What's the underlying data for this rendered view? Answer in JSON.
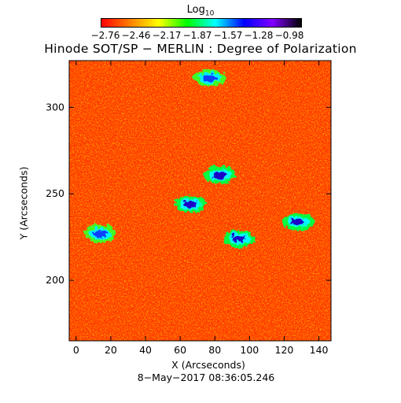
{
  "colorbar": {
    "title_base": "Log",
    "title_sub": "10",
    "ticks": [
      "−2.76",
      "−2.46",
      "−2.17",
      "−1.87",
      "−1.57",
      "−1.28",
      "−0.98"
    ],
    "colormap": [
      "#ff0000",
      "#ff7f00",
      "#ffff00",
      "#00ff00",
      "#00ffff",
      "#0000ff",
      "#8000ff",
      "#000000"
    ]
  },
  "chart_data": {
    "type": "heatmap",
    "title": "Hinode SOT/SP − MERLIN : Degree of Polarization",
    "xlabel": "X (Arcseconds)",
    "ylabel": "Y (Arcseconds)",
    "xlim": [
      -4,
      147
    ],
    "ylim": [
      165,
      327
    ],
    "xticks": [
      0,
      20,
      40,
      60,
      80,
      100,
      120,
      140
    ],
    "yticks": [
      200,
      250,
      300
    ],
    "value_range": [
      -2.76,
      -0.98
    ],
    "value_label": "Log10",
    "date": "8−May−2017 08:36:05.246",
    "dominant_level": "red/orange (−2.76 to −2.46)",
    "strong_polarization_regions": [
      {
        "x": 65,
        "y": 245,
        "level": "−1.28 to −0.98"
      },
      {
        "x": 82,
        "y": 262,
        "level": "−1.28 to −0.98"
      },
      {
        "x": 93,
        "y": 225,
        "level": "−1.28 to −0.98"
      },
      {
        "x": 127,
        "y": 235,
        "level": "−1.28 to −0.98"
      },
      {
        "x": 13,
        "y": 228,
        "level": "−1.57 to −1.28"
      },
      {
        "x": 76,
        "y": 318,
        "level": "−1.57 to −1.28"
      }
    ]
  }
}
